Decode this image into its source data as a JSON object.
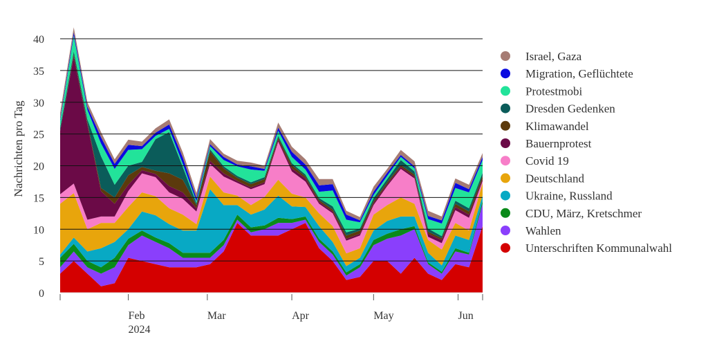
{
  "chart_data": {
    "type": "area",
    "stacked": true,
    "title": "",
    "xlabel": "",
    "ylabel": "Nachrichten pro Tag",
    "ylim": [
      0,
      42
    ],
    "yticks": [
      0,
      5,
      10,
      15,
      20,
      25,
      30,
      35,
      40
    ],
    "xlim": [
      "2024-01-07",
      "2024-06-10"
    ],
    "xticks": [
      {
        "date": "2024-02-01",
        "label": "Feb",
        "sublabel": "2024"
      },
      {
        "date": "2024-03-01",
        "label": "Mar"
      },
      {
        "date": "2024-04-01",
        "label": "Apr"
      },
      {
        "date": "2024-05-01",
        "label": "May"
      },
      {
        "date": "2024-06-01",
        "label": "Jun"
      }
    ],
    "grid": true,
    "legend_position": "right",
    "x": [
      "2024-01-07",
      "2024-01-12",
      "2024-01-17",
      "2024-01-22",
      "2024-01-27",
      "2024-02-01",
      "2024-02-06",
      "2024-02-11",
      "2024-02-16",
      "2024-02-21",
      "2024-02-26",
      "2024-03-02",
      "2024-03-07",
      "2024-03-12",
      "2024-03-17",
      "2024-03-22",
      "2024-03-27",
      "2024-04-01",
      "2024-04-06",
      "2024-04-11",
      "2024-04-16",
      "2024-04-21",
      "2024-04-26",
      "2024-05-01",
      "2024-05-06",
      "2024-05-11",
      "2024-05-16",
      "2024-05-21",
      "2024-05-26",
      "2024-05-31",
      "2024-06-05",
      "2024-06-10"
    ],
    "series": [
      {
        "name": "Unterschriften Kommunalwahl",
        "color": "#d40000",
        "values": [
          3,
          5,
          3,
          1,
          1.5,
          5.5,
          5,
          4.5,
          4,
          4,
          4,
          4.5,
          6.5,
          11,
          9,
          9,
          9,
          10,
          11,
          7,
          5,
          2,
          2.5,
          5,
          5,
          3,
          5.5,
          3,
          2,
          4.5,
          4,
          10.5
        ]
      },
      {
        "name": "Wahlen",
        "color": "#8a3ffc",
        "values": [
          1,
          1.5,
          1,
          2,
          2.5,
          2,
          4,
          3.5,
          3,
          1.5,
          1.5,
          1,
          1,
          0.5,
          0.5,
          1,
          2,
          1,
          0.5,
          1,
          1,
          0.7,
          1.5,
          2.5,
          3.5,
          6,
          4.5,
          1.5,
          1,
          2,
          2,
          3.5
        ]
      },
      {
        "name": "CDU, März, Kretschmer",
        "color": "#0a8a1a",
        "values": [
          1.5,
          1.2,
          1,
          1,
          1.5,
          1,
          0.8,
          0.7,
          0.8,
          0.8,
          0.8,
          0.8,
          0.8,
          0.8,
          0.8,
          0.6,
          0.8,
          0.6,
          0.5,
          0.5,
          0.5,
          0.5,
          0.5,
          0.8,
          0.8,
          1,
          0.5,
          0.3,
          0.3,
          0.5,
          0.3,
          0.5
        ]
      },
      {
        "name": "Ukraine, Russland",
        "color": "#08a9c4",
        "values": [
          0.5,
          1,
          1.5,
          3,
          2.5,
          1.5,
          3,
          3.5,
          3,
          3.5,
          3.5,
          10,
          5.5,
          1.5,
          2,
          2.5,
          3.5,
          2,
          1.5,
          2,
          1.5,
          1,
          1,
          1.5,
          2,
          2,
          1.5,
          1.5,
          1,
          2,
          2,
          0.8
        ]
      },
      {
        "name": "Deutschland",
        "color": "#e8a50c",
        "values": [
          8,
          7,
          3.5,
          4,
          3,
          3.5,
          3,
          3,
          2.5,
          2.5,
          1,
          2,
          2,
          1.5,
          1.5,
          2,
          2.5,
          2,
          1.5,
          2,
          2.5,
          2,
          1.5,
          2.5,
          2.5,
          3,
          2,
          2,
          2.5,
          2,
          1.5,
          2
        ]
      },
      {
        "name": "Covid 19",
        "color": "#f77ec8",
        "values": [
          1.5,
          1.5,
          1.5,
          1,
          1,
          2.5,
          3,
          3,
          2.5,
          2.5,
          2,
          2,
          2.5,
          2,
          2.5,
          2,
          6,
          3.5,
          2.5,
          1.5,
          2,
          2,
          2,
          1.5,
          3,
          4.5,
          4,
          0.5,
          1,
          2,
          2,
          0.3
        ]
      },
      {
        "name": "Bauernprotest",
        "color": "#6b0a47",
        "values": [
          10,
          20,
          15,
          4,
          2,
          1,
          0.5,
          0.5,
          1,
          1,
          0.5,
          0.5,
          0.5,
          0.3,
          0.3,
          0.3,
          0.3,
          0.5,
          0.5,
          0.3,
          0.3,
          0.3,
          0.3,
          0.3,
          0.3,
          0.3,
          0.3,
          0.5,
          0.5,
          0.5,
          0.5,
          0.3
        ]
      },
      {
        "name": "Klimawandel",
        "color": "#5c3a0c",
        "values": [
          0,
          0.3,
          0.3,
          0.5,
          1,
          1.5,
          0.5,
          0.5,
          2,
          2,
          0.5,
          1.5,
          0.8,
          0.5,
          0.5,
          0.5,
          0.3,
          0.5,
          0.3,
          0.3,
          0.3,
          0.5,
          0.5,
          0.3,
          0.3,
          0.3,
          0.3,
          0.3,
          0.3,
          0.5,
          0.5,
          0.5
        ]
      },
      {
        "name": "Dresden Gedenken",
        "color": "#0b5c5a",
        "values": [
          0.5,
          0.5,
          0.5,
          5,
          2,
          1.5,
          0.8,
          5,
          6.5,
          2,
          0.3,
          0.3,
          0.3,
          0.3,
          0.3,
          0.3,
          0.3,
          0.3,
          0.3,
          0.3,
          0.5,
          0.5,
          0.3,
          0.5,
          0.5,
          0.8,
          0.5,
          0.5,
          0.3,
          0.5,
          0.5,
          0.5
        ]
      },
      {
        "name": "Protestmobi",
        "color": "#22e39a",
        "values": [
          1,
          2.5,
          1.5,
          2,
          2.5,
          2.5,
          2,
          0.5,
          0.5,
          0.5,
          0.3,
          0.5,
          1,
          1.5,
          2,
          1,
          0.8,
          1,
          0.8,
          1,
          2.5,
          2,
          1,
          0.5,
          0.5,
          0.5,
          0.5,
          1.5,
          2,
          2,
          2.5,
          2
        ]
      },
      {
        "name": "Migration, Geflüchtete",
        "color": "#0a0ae0",
        "values": [
          0.3,
          0.5,
          0.5,
          1,
          0.8,
          0.8,
          0.5,
          0.5,
          0.7,
          1,
          0.5,
          0.3,
          0.5,
          0.3,
          0.5,
          0.3,
          0.5,
          0.8,
          0.8,
          1,
          1,
          0.8,
          0.3,
          0.5,
          0.5,
          0.3,
          0.3,
          0.5,
          0.5,
          0.8,
          0.5,
          0.5
        ]
      },
      {
        "name": "Israel, Gaza",
        "color": "#a67c74",
        "values": [
          1,
          0.8,
          0.7,
          0.8,
          0.7,
          0.8,
          0.7,
          0.7,
          0.8,
          0.8,
          0.8,
          0.8,
          0.5,
          0.6,
          0.6,
          0.5,
          0.8,
          0.8,
          0.8,
          1,
          0.8,
          0.6,
          0.5,
          0.8,
          0.6,
          0.8,
          0.8,
          0.8,
          0.6,
          0.7,
          0.7,
          0.6
        ]
      }
    ]
  }
}
